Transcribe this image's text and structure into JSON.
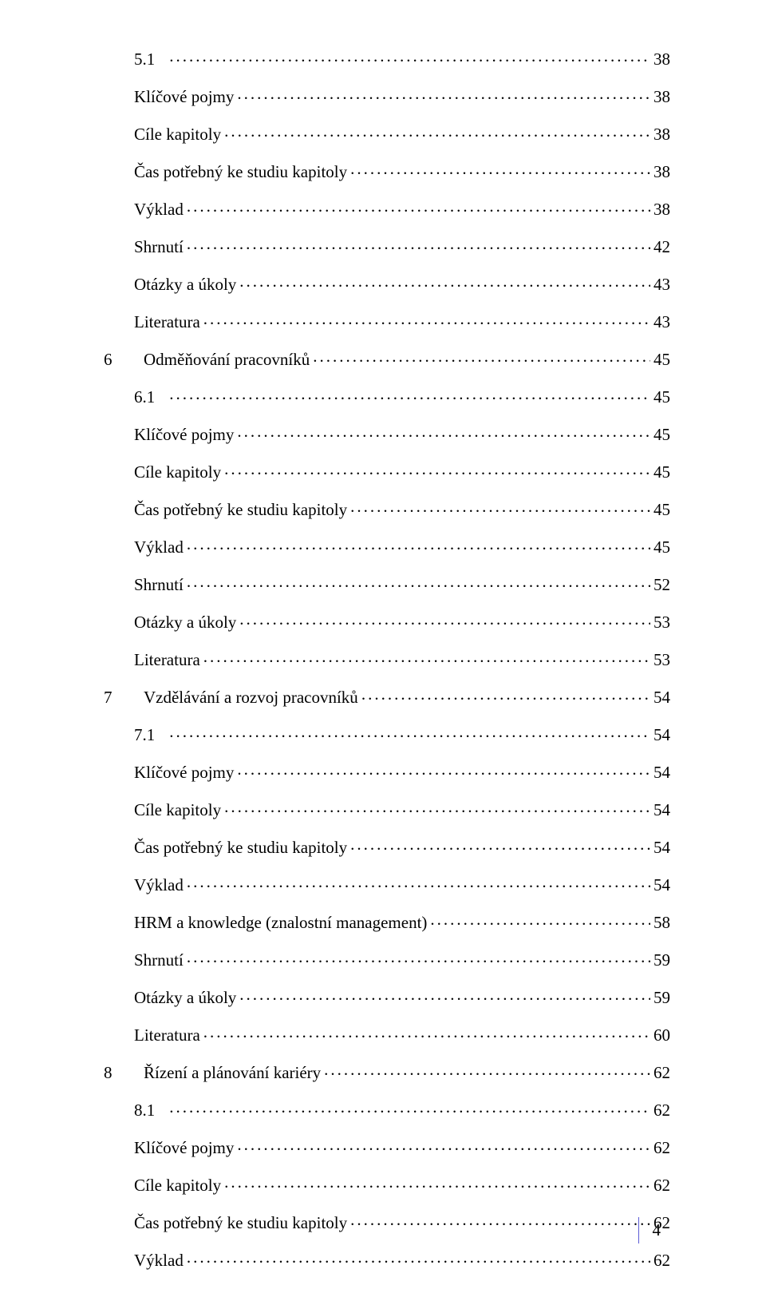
{
  "page_number": "4",
  "colors": {
    "text": "#000000",
    "page_bar": "#5b5bd6",
    "background": "#ffffff"
  },
  "typography": {
    "font_family": "Times New Roman",
    "font_size_pt": 16
  },
  "toc": [
    {
      "level": 2,
      "num": "5.1",
      "label": "",
      "page": "38"
    },
    {
      "level": 2,
      "num": "",
      "label": "Klíčové pojmy",
      "page": "38"
    },
    {
      "level": 2,
      "num": "",
      "label": "Cíle kapitoly",
      "page": "38"
    },
    {
      "level": 2,
      "num": "",
      "label": "Čas potřebný ke studiu kapitoly",
      "page": "38"
    },
    {
      "level": 2,
      "num": "",
      "label": "Výklad",
      "page": "38"
    },
    {
      "level": 2,
      "num": "",
      "label": "Shrnutí",
      "page": "42"
    },
    {
      "level": 2,
      "num": "",
      "label": "Otázky a úkoly",
      "page": "43"
    },
    {
      "level": 2,
      "num": "",
      "label": "Literatura",
      "page": "43"
    },
    {
      "level": 1,
      "num": "6",
      "label": "Odměňování pracovníků",
      "page": "45"
    },
    {
      "level": 2,
      "num": "6.1",
      "label": "",
      "page": "45"
    },
    {
      "level": 2,
      "num": "",
      "label": "Klíčové pojmy",
      "page": "45"
    },
    {
      "level": 2,
      "num": "",
      "label": "Cíle kapitoly",
      "page": "45"
    },
    {
      "level": 2,
      "num": "",
      "label": "Čas potřebný ke studiu kapitoly",
      "page": "45"
    },
    {
      "level": 2,
      "num": "",
      "label": "Výklad",
      "page": "45"
    },
    {
      "level": 2,
      "num": "",
      "label": "Shrnutí",
      "page": "52"
    },
    {
      "level": 2,
      "num": "",
      "label": "Otázky a úkoly",
      "page": "53"
    },
    {
      "level": 2,
      "num": "",
      "label": "Literatura",
      "page": "53"
    },
    {
      "level": 1,
      "num": "7",
      "label": "Vzdělávání a rozvoj pracovníků",
      "page": "54"
    },
    {
      "level": 2,
      "num": "7.1",
      "label": "",
      "page": "54"
    },
    {
      "level": 2,
      "num": "",
      "label": "Klíčové pojmy",
      "page": "54"
    },
    {
      "level": 2,
      "num": "",
      "label": "Cíle kapitoly",
      "page": "54"
    },
    {
      "level": 2,
      "num": "",
      "label": "Čas potřebný ke studiu kapitoly",
      "page": "54"
    },
    {
      "level": 2,
      "num": "",
      "label": "Výklad",
      "page": "54"
    },
    {
      "level": 2,
      "num": "",
      "label": "HRM a knowledge (znalostní management)",
      "page": "58"
    },
    {
      "level": 2,
      "num": "",
      "label": "Shrnutí",
      "page": "59"
    },
    {
      "level": 2,
      "num": "",
      "label": "Otázky a úkoly",
      "page": "59"
    },
    {
      "level": 2,
      "num": "",
      "label": "Literatura",
      "page": "60"
    },
    {
      "level": 1,
      "num": "8",
      "label": "Řízení a plánování kariéry",
      "page": "62"
    },
    {
      "level": 2,
      "num": "8.1",
      "label": "",
      "page": "62"
    },
    {
      "level": 2,
      "num": "",
      "label": "Klíčové pojmy",
      "page": "62"
    },
    {
      "level": 2,
      "num": "",
      "label": "Cíle kapitoly",
      "page": "62"
    },
    {
      "level": 2,
      "num": "",
      "label": "Čas potřebný ke studiu kapitoly",
      "page": "62"
    },
    {
      "level": 2,
      "num": "",
      "label": "Výklad",
      "page": "62"
    }
  ]
}
